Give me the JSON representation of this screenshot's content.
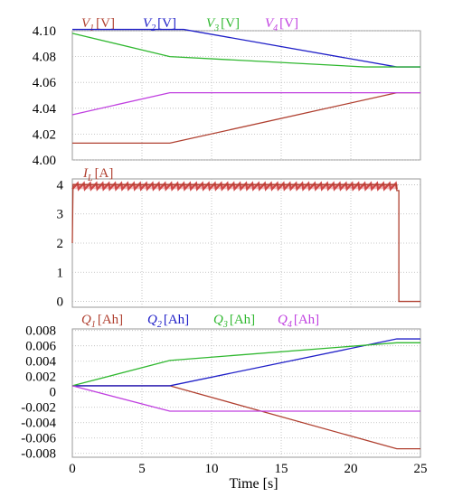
{
  "chart_data": [
    {
      "type": "line",
      "ylim": [
        4.0,
        4.1
      ],
      "yticks": [
        "4.00",
        "4.02",
        "4.04",
        "4.06",
        "4.08",
        "4.10"
      ],
      "ytick_values": [
        4.0,
        4.02,
        4.04,
        4.06,
        4.08,
        4.1
      ],
      "xlim": [
        0,
        25
      ],
      "legend": [
        {
          "sym": "V",
          "sub": "1",
          "unit": "[V]",
          "color": "#b04030"
        },
        {
          "sym": "V",
          "sub": "2",
          "unit": "[V]",
          "color": "#2020c8"
        },
        {
          "sym": "V",
          "sub": "3",
          "unit": "[V]",
          "color": "#30b830"
        },
        {
          "sym": "V",
          "sub": "4",
          "unit": "[V]",
          "color": "#c040e0"
        }
      ],
      "series": [
        {
          "color": "#b04030",
          "points": [
            [
              0,
              4.013
            ],
            [
              7,
              4.013
            ],
            [
              23.3,
              4.052
            ],
            [
              25,
              4.052
            ]
          ]
        },
        {
          "color": "#2020c8",
          "points": [
            [
              0,
              4.101
            ],
            [
              8,
              4.101
            ],
            [
              23.3,
              4.072
            ],
            [
              25,
              4.072
            ]
          ]
        },
        {
          "color": "#30b830",
          "points": [
            [
              0,
              4.098
            ],
            [
              7,
              4.08
            ],
            [
              21,
              4.072
            ],
            [
              25,
              4.072
            ]
          ]
        },
        {
          "color": "#c040e0",
          "points": [
            [
              0,
              4.035
            ],
            [
              7,
              4.052
            ],
            [
              25,
              4.052
            ]
          ]
        }
      ]
    },
    {
      "type": "line",
      "ylim": [
        -0.2,
        4.2
      ],
      "yticks": [
        "0",
        "1",
        "2",
        "3",
        "4"
      ],
      "ytick_values": [
        0,
        1,
        2,
        3,
        4
      ],
      "xlim": [
        0,
        25
      ],
      "legend": [
        {
          "sym": "I",
          "sub": "L",
          "unit": "[A]",
          "color": "#b04030"
        }
      ],
      "ripple": {
        "from": 0,
        "to": 23.3,
        "low": 3.85,
        "high": 4.05,
        "teeth": 52,
        "color": "#d04848"
      },
      "series": [
        {
          "color": "#b04030",
          "points": [
            [
              0,
              2.0
            ],
            [
              0.05,
              4.0
            ],
            [
              23.3,
              4.0
            ],
            [
              23.3,
              3.8
            ],
            [
              23.45,
              3.8
            ],
            [
              23.45,
              0.0
            ],
            [
              25,
              0.0
            ]
          ]
        }
      ]
    },
    {
      "type": "line",
      "ylim": [
        -0.0085,
        0.0082
      ],
      "yticks": [
        "0.008",
        "0.006",
        "0.004",
        "0.002",
        "0",
        "-0.002",
        "-0.004",
        "-0.006",
        "-0.008"
      ],
      "ytick_values": [
        0.008,
        0.006,
        0.004,
        0.002,
        0,
        -0.002,
        -0.004,
        -0.006,
        -0.008
      ],
      "xlim": [
        0,
        25
      ],
      "xticks": [
        "0",
        "5",
        "10",
        "15",
        "20",
        "25"
      ],
      "xtick_values": [
        0,
        5,
        10,
        15,
        20,
        25
      ],
      "xlabel": "Time [s]",
      "legend": [
        {
          "sym": "Q",
          "sub": "1",
          "unit": "[Ah]",
          "color": "#b04030"
        },
        {
          "sym": "Q",
          "sub": "2",
          "unit": "[Ah]",
          "color": "#2020c8"
        },
        {
          "sym": "Q",
          "sub": "3",
          "unit": "[Ah]",
          "color": "#30b830"
        },
        {
          "sym": "Q",
          "sub": "4",
          "unit": "[Ah]",
          "color": "#c040e0"
        }
      ],
      "series": [
        {
          "color": "#b04030",
          "points": [
            [
              0,
              0.0008
            ],
            [
              7,
              0.0008
            ],
            [
              23.3,
              -0.0074
            ],
            [
              25,
              -0.0074
            ]
          ]
        },
        {
          "color": "#2020c8",
          "points": [
            [
              0,
              0.0008
            ],
            [
              7,
              0.0008
            ],
            [
              23.3,
              0.0069
            ],
            [
              25,
              0.0069
            ]
          ]
        },
        {
          "color": "#30b830",
          "points": [
            [
              0,
              0.0008
            ],
            [
              7,
              0.0041
            ],
            [
              23.3,
              0.0064
            ],
            [
              25,
              0.0064
            ]
          ]
        },
        {
          "color": "#c040e0",
          "points": [
            [
              0,
              0.0008
            ],
            [
              7,
              -0.0025
            ],
            [
              25,
              -0.0025
            ]
          ]
        }
      ]
    }
  ]
}
